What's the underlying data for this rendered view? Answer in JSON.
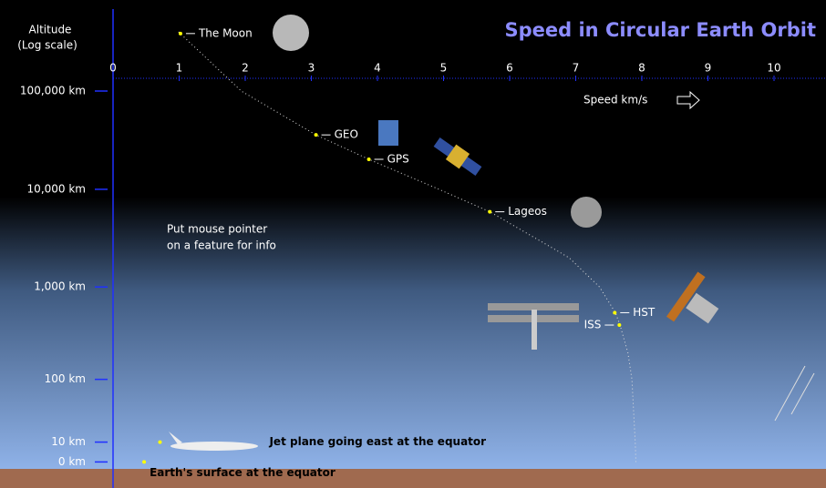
{
  "chart_data": {
    "type": "scatter",
    "title": "Speed in Circular Earth Orbit",
    "y_label": [
      "Altitude",
      "(Log scale)"
    ],
    "x_label": "Speed  km/s",
    "note": [
      "Put mouse pointer",
      "on a feature for info"
    ],
    "y_log_scale": true,
    "xlim": [
      0,
      10.5
    ],
    "xticks": [
      0,
      1,
      2,
      3,
      4,
      5,
      6,
      7,
      8,
      9,
      10
    ],
    "yticks": [
      {
        "value": 100000,
        "label": "100,000 km"
      },
      {
        "value": 10000,
        "label": "10,000 km"
      },
      {
        "value": 1000,
        "label": "1,000 km"
      },
      {
        "value": 100,
        "label": "100 km"
      },
      {
        "value": 10,
        "label": "10 km"
      },
      {
        "value": 0,
        "label": "0 km"
      }
    ],
    "points": [
      {
        "label": "The Moon",
        "x": 1.02,
        "y": 384400
      },
      {
        "label": "GEO",
        "x": 3.07,
        "y": 35786
      },
      {
        "label": "GPS",
        "x": 3.87,
        "y": 20200
      },
      {
        "label": "Lageos",
        "x": 5.7,
        "y": 5900
      },
      {
        "label": "HST",
        "x": 7.59,
        "y": 540
      },
      {
        "label": "ISS",
        "x": 7.66,
        "y": 400
      },
      {
        "label": "Jet plane going east at the equator",
        "x": 0.71,
        "y": 10
      },
      {
        "label": "Earth's surface at the equator",
        "x": 0.47,
        "y": 0
      }
    ],
    "curve": {
      "speed": [
        0.99,
        1.94,
        3.07,
        3.87,
        4.93,
        5.7,
        6.9,
        7.36,
        7.6,
        7.67,
        7.79,
        7.85,
        7.9,
        7.91
      ],
      "altitude": [
        400000,
        100000,
        35786,
        20200,
        10000,
        5900,
        2000,
        1000,
        540,
        400,
        200,
        100,
        10,
        0
      ]
    },
    "point_color": "#ffff00",
    "axis_color": "#2030ff",
    "title_color": "#8c8cff"
  }
}
